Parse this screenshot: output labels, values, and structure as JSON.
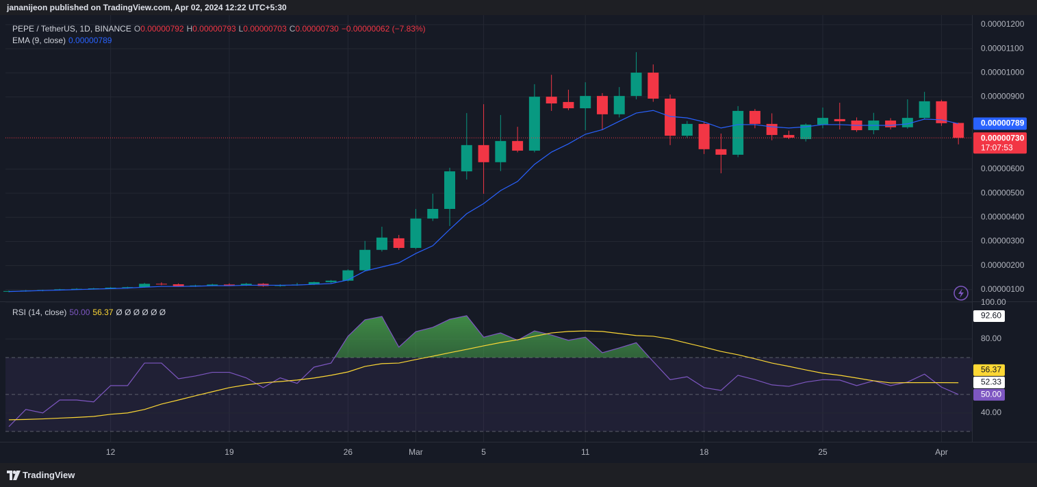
{
  "header": {
    "publisher": "jananijeon published on TradingView.com, Apr 02, 2024 12:22 UTC+5:30"
  },
  "footer": {
    "brand": "TradingView"
  },
  "chart_data": [
    {
      "type": "candlestick",
      "title": "PEPE / TetherUS, 1D, BINANCE",
      "ohlc_legend": [
        {
          "label": "O",
          "value": "0.00000792"
        },
        {
          "label": "H",
          "value": "0.00000793"
        },
        {
          "label": "L",
          "value": "0.00000703"
        },
        {
          "label": "C",
          "value": "0.00000730"
        }
      ],
      "change": "−0.00000062 (−7.83%)",
      "categories": [
        null,
        null,
        null,
        null,
        null,
        null,
        "12",
        null,
        null,
        null,
        null,
        null,
        null,
        "19",
        null,
        null,
        null,
        null,
        null,
        null,
        "26",
        null,
        null,
        null,
        "Mar",
        null,
        null,
        null,
        "5",
        null,
        null,
        null,
        null,
        null,
        "11",
        null,
        null,
        null,
        null,
        null,
        null,
        "18",
        null,
        null,
        null,
        null,
        null,
        null,
        "25",
        null,
        null,
        null,
        null,
        null,
        null,
        "Apr",
        null
      ],
      "open": [
        9.2e-07,
        9.4e-07,
        9.6e-07,
        9.8e-07,
        1.01e-06,
        1.03e-06,
        1.05e-06,
        1.08e-06,
        1.1e-06,
        1.24e-06,
        1.22e-06,
        1.14e-06,
        1.17e-06,
        1.21e-06,
        1.18e-06,
        1.24e-06,
        1.15e-06,
        1.19e-06,
        1.21e-06,
        1.31e-06,
        1.37e-06,
        1.8e-06,
        2.65e-06,
        3.13e-06,
        2.73e-06,
        3.95e-06,
        4.35e-06,
        5.91e-06,
        7e-06,
        6.29e-06,
        7.17e-06,
        6.77e-06,
        9.01e-06,
        8.79e-06,
        8.53e-06,
        9.04e-06,
        8.28e-06,
        9.04e-06,
        1.001e-05,
        8.93e-06,
        7.39e-06,
        7.88e-06,
        6.83e-06,
        6.6e-06,
        8.42e-06,
        7.88e-06,
        7.42e-06,
        7.25e-06,
        7.85e-06,
        8.08e-06,
        8.02e-06,
        7.62e-06,
        8.02e-06,
        7.74e-06,
        8.13e-06,
        8.82e-06,
        7.92e-06
      ],
      "high": [
        9.6e-07,
        9.8e-07,
        9.9e-07,
        1.03e-06,
        1.06e-06,
        1.07e-06,
        1.1e-06,
        1.12e-06,
        1.28e-06,
        1.3e-06,
        1.26e-06,
        1.2e-06,
        1.24e-06,
        1.26e-06,
        1.28e-06,
        1.27e-06,
        1.22e-06,
        1.28e-06,
        1.33e-06,
        1.4e-06,
        1.84e-06,
        3.02e-06,
        3.61e-06,
        3.27e-06,
        4.35e-06,
        4.98e-06,
        6.06e-06,
        8.33e-06,
        8.7e-06,
        8.25e-06,
        7.76e-06,
        9.53e-06,
        9.92e-06,
        9.3e-06,
        9.61e-06,
        9.16e-06,
        9.41e-06,
        1.086e-05,
        1.035e-05,
        9.1e-06,
        8e-06,
        7.95e-06,
        7.48e-06,
        8.62e-06,
        8.5e-06,
        8.32e-06,
        7.6e-06,
        7.9e-06,
        8.56e-06,
        8.76e-06,
        8.15e-06,
        8.34e-06,
        8.12e-06,
        8.9e-06,
        9.21e-06,
        8.88e-06,
        7.93e-06
      ],
      "low": [
        8.9e-07,
        9.1e-07,
        9.3e-07,
        9.6e-07,
        9.9e-07,
        1e-06,
        1.02e-06,
        1.04e-06,
        1.08e-06,
        1.18e-06,
        1.12e-06,
        1.11e-06,
        1.14e-06,
        1.16e-06,
        1.15e-06,
        1.12e-06,
        1.12e-06,
        1.16e-06,
        1.19e-06,
        1.27e-06,
        1.34e-06,
        1.77e-06,
        2.58e-06,
        2.65e-06,
        2.68e-06,
        3.85e-06,
        3.64e-06,
        5.57e-06,
        4.98e-06,
        5.92e-06,
        6.7e-06,
        6.7e-06,
        8.42e-06,
        8.45e-06,
        7.62e-06,
        7.62e-06,
        8.15e-06,
        8.9e-06,
        8.8e-06,
        7e-06,
        7.3e-06,
        6.63e-06,
        5.83e-06,
        6.5e-06,
        7.7e-06,
        7.2e-06,
        7.25e-06,
        7.15e-06,
        7.7e-06,
        7.65e-06,
        7.55e-06,
        7.45e-06,
        7.65e-06,
        7.68e-06,
        8.08e-06,
        7.8e-06,
        7.03e-06
      ],
      "close": [
        9.4e-07,
        9.6e-07,
        9.8e-07,
        1.01e-06,
        1.03e-06,
        1.05e-06,
        1.08e-06,
        1.1e-06,
        1.24e-06,
        1.22e-06,
        1.14e-06,
        1.17e-06,
        1.21e-06,
        1.18e-06,
        1.24e-06,
        1.15e-06,
        1.19e-06,
        1.21e-06,
        1.31e-06,
        1.37e-06,
        1.8e-06,
        2.65e-06,
        3.16e-06,
        2.73e-06,
        3.95e-06,
        4.35e-06,
        5.91e-06,
        7e-06,
        6.29e-06,
        7.17e-06,
        6.77e-06,
        9.01e-06,
        8.73e-06,
        8.53e-06,
        9.04e-06,
        8.28e-06,
        9.04e-06,
        1.001e-05,
        8.93e-06,
        7.39e-06,
        7.88e-06,
        6.83e-06,
        6.6e-06,
        8.42e-06,
        7.88e-06,
        7.42e-06,
        7.31e-06,
        7.85e-06,
        8.13e-06,
        7.99e-06,
        7.62e-06,
        8.02e-06,
        7.74e-06,
        8.13e-06,
        8.82e-06,
        7.91e-06,
        7.3e-06
      ],
      "up_color": "#089981",
      "down_color": "#f23645",
      "series": [
        {
          "name": "EMA (9, close)",
          "color": "#2962ff",
          "value_label": "0.00000789",
          "values": [
            9.2e-07,
            9.4e-07,
            9.6e-07,
            9.8e-07,
            1e-06,
            1.02e-06,
            1.04e-06,
            1.06e-06,
            1.1e-06,
            1.13e-06,
            1.13e-06,
            1.14e-06,
            1.16e-06,
            1.16e-06,
            1.18e-06,
            1.18e-06,
            1.18e-06,
            1.19e-06,
            1.22e-06,
            1.25e-06,
            1.4e-06,
            1.77e-06,
            1.94e-06,
            2.11e-06,
            2.5e-06,
            2.82e-06,
            3.5e-06,
            4.15e-06,
            4.57e-06,
            5.11e-06,
            5.49e-06,
            6.2e-06,
            6.71e-06,
            7.05e-06,
            7.45e-06,
            7.64e-06,
            7.99e-06,
            8.33e-06,
            8.44e-06,
            8.19e-06,
            8.13e-06,
            7.96e-06,
            7.71e-06,
            7.85e-06,
            7.85e-06,
            7.76e-06,
            7.71e-06,
            7.76e-06,
            7.85e-06,
            7.85e-06,
            7.82e-06,
            7.82e-06,
            7.82e-06,
            7.88e-06,
            8.08e-06,
            8.05e-06,
            7.89e-06
          ]
        }
      ],
      "last_price_label": "0.00000730",
      "countdown": "17:07:53",
      "ylim": [
        5.1e-07,
        1.24e-05
      ],
      "yticks": [
        {
          "value": 1e-06,
          "label": "0.00000100"
        },
        {
          "value": 2e-06,
          "label": "0.00000200"
        },
        {
          "value": 3e-06,
          "label": "0.00000300"
        },
        {
          "value": 4e-06,
          "label": "0.00000400"
        },
        {
          "value": 5e-06,
          "label": "0.00000500"
        },
        {
          "value": 6e-06,
          "label": "0.00000600"
        },
        {
          "value": 9e-06,
          "label": "0.00000900"
        },
        {
          "value": 1e-05,
          "label": "0.00001000"
        },
        {
          "value": 1.1e-05,
          "label": "0.00001100"
        },
        {
          "value": 1.2e-05,
          "label": "0.00001200"
        }
      ],
      "grid": true
    },
    {
      "type": "line",
      "title": "RSI (14, close)",
      "extra": "Ø Ø Ø Ø Ø Ø",
      "series": [
        {
          "color": "#7e57c2",
          "value_label": "50.00",
          "values": [
            32.6,
            41.9,
            40,
            47,
            47,
            46,
            54.8,
            54.8,
            67,
            67,
            58.5,
            60,
            62,
            62,
            59,
            53.7,
            59,
            56,
            64.8,
            67,
            81.5,
            90.4,
            92.2,
            75.6,
            84,
            86.3,
            90.7,
            92.6,
            81,
            83.3,
            79.3,
            84.4,
            82.2,
            79.3,
            81,
            72.6,
            75.2,
            78,
            67.8,
            58,
            59.6,
            53.7,
            52.2,
            60.4,
            58,
            55.2,
            54.4,
            56.7,
            58,
            57.8,
            54.8,
            57.4,
            54.8,
            56.7,
            61,
            54,
            50
          ]
        },
        {
          "color": "#fdd835",
          "value_label": "56.37",
          "values": [
            36.3,
            36.5,
            36.8,
            37.2,
            37.6,
            38.1,
            39.3,
            40,
            41.9,
            44.8,
            47,
            49.3,
            51.5,
            53.7,
            55.2,
            56.3,
            57,
            57.8,
            58.9,
            60.4,
            62.2,
            65.2,
            66.7,
            67,
            68.9,
            70.7,
            72.6,
            74.4,
            76.3,
            78.1,
            79.6,
            81.5,
            83.3,
            84.1,
            84.4,
            84.1,
            83,
            81.9,
            81.5,
            80,
            77.8,
            75.6,
            73.3,
            71.5,
            69.3,
            67,
            65.2,
            63.3,
            61.5,
            60.4,
            58.9,
            57.4,
            56.3,
            56.4,
            56.4,
            56.4,
            56.37
          ]
        }
      ],
      "axis_tags": [
        {
          "value": 92.6,
          "label": "92.60"
        },
        {
          "value": 52.33,
          "label": "52.33"
        }
      ],
      "bands": {
        "upper": 70,
        "middle": 50,
        "lower": 30
      },
      "ylim": [
        24.4,
        100
      ],
      "yticks": [
        {
          "value": 100,
          "label": "100.00"
        },
        {
          "value": 80,
          "label": "80.00"
        },
        {
          "value": 40,
          "label": "40.00"
        }
      ],
      "grid": true
    }
  ]
}
